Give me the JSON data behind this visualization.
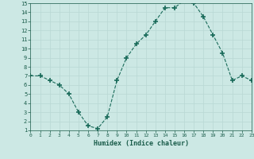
{
  "xlabel": "Humidex (Indice chaleur)",
  "ylabel": "",
  "x": [
    0,
    1,
    2,
    3,
    4,
    5,
    6,
    7,
    8,
    9,
    10,
    11,
    12,
    13,
    14,
    15,
    16,
    17,
    18,
    19,
    20,
    21,
    22,
    23
  ],
  "y": [
    7,
    7,
    6.5,
    6,
    5,
    3,
    1.5,
    1.2,
    2.5,
    6.5,
    9,
    10.5,
    11.5,
    13,
    14.5,
    14.5,
    15.3,
    15,
    13.5,
    11.5,
    9.5,
    6.5,
    7,
    6.5
  ],
  "xlim": [
    0,
    23
  ],
  "ylim": [
    1,
    15
  ],
  "x_ticks": [
    0,
    1,
    2,
    3,
    4,
    5,
    6,
    7,
    8,
    9,
    10,
    11,
    12,
    13,
    14,
    15,
    16,
    17,
    18,
    19,
    20,
    21,
    22,
    23
  ],
  "y_ticks": [
    1,
    2,
    3,
    4,
    5,
    6,
    7,
    8,
    9,
    10,
    11,
    12,
    13,
    14,
    15
  ],
  "line_color": "#1a6b5a",
  "marker": "+",
  "marker_size": 4,
  "marker_linewidth": 1.2,
  "bg_color": "#cce8e4",
  "grid_major_color": "#b8d8d4",
  "grid_minor_color": "#d8eeeb",
  "axis_label_color": "#1a5c4a",
  "tick_label_color": "#1a5c4a",
  "figsize": [
    3.2,
    2.0
  ],
  "dpi": 100
}
